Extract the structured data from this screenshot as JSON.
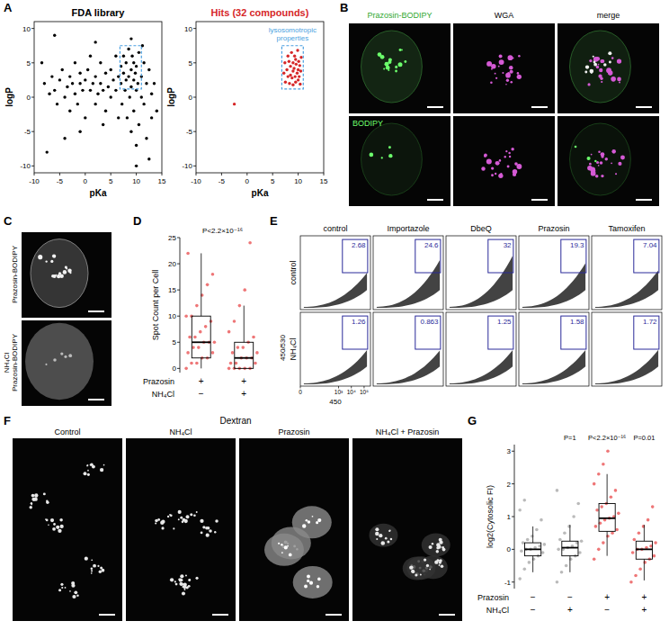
{
  "chart_data": [
    {
      "type": "scatter",
      "title": "FDA library",
      "xlabel": "pKa",
      "ylabel": "logP",
      "color": "#000000",
      "xlim": [
        -10,
        15
      ],
      "ylim": [
        -11,
        11
      ],
      "xticks": [
        -10,
        -5,
        0,
        5,
        10,
        15
      ],
      "yticks": [
        -10,
        -5,
        0,
        5,
        10
      ],
      "x": [
        -8,
        -7,
        -6.5,
        -6,
        -5.5,
        -5,
        -4.5,
        -4,
        -3.5,
        -3,
        -3,
        -2.5,
        -2,
        -2,
        -1.5,
        -1,
        -1,
        -0.5,
        0,
        0,
        0.5,
        1,
        1,
        1.5,
        2,
        2,
        2.5,
        3,
        3,
        3.5,
        4,
        4,
        4.5,
        5,
        5,
        5.5,
        6,
        6,
        6.5,
        7,
        7,
        7.2,
        7.5,
        7.5,
        7.8,
        8,
        8,
        8.2,
        8.5,
        8.5,
        8.7,
        9,
        9,
        9,
        9.2,
        9.5,
        9.5,
        9.5,
        9.8,
        10,
        10,
        10,
        10.3,
        10.5,
        10.5,
        11,
        11,
        11.5,
        11.5,
        12,
        12,
        12.5,
        13,
        13,
        13.5,
        14,
        -7.5,
        -4,
        10,
        12.5,
        -6,
        2,
        9,
        -8.5,
        3.5,
        6.5,
        11.2,
        -1
      ],
      "values": [
        2,
        0.5,
        3,
        1,
        -1,
        2.5,
        4,
        0,
        1.5,
        3,
        -2,
        2,
        0.5,
        5,
        -1,
        2,
        3.5,
        1,
        2.5,
        -3,
        4,
        1,
        6,
        2,
        -1,
        3,
        0.5,
        2,
        5,
        1,
        3.5,
        -2,
        1.5,
        4,
        0,
        2.5,
        1,
        6,
        3,
        2,
        4.5,
        -1,
        3.5,
        6,
        1,
        2.5,
        5,
        -3,
        3,
        7,
        0,
        4,
        1.5,
        -5,
        6,
        2.5,
        5,
        -2,
        3.5,
        1,
        4.5,
        -7,
        2,
        6.5,
        -4,
        3,
        0,
        5,
        -1,
        2,
        -6,
        4,
        0.5,
        -3,
        2,
        -2,
        -8,
        -6,
        -10,
        -9,
        9,
        8,
        8.5,
        5,
        -4,
        -3,
        7.5,
        -5
      ],
      "annotations": [
        {
          "x": [
            6.8,
            11
          ],
          "y": [
            1.2,
            7.5
          ]
        }
      ]
    },
    {
      "type": "scatter",
      "title": "Hits (32 compounds)",
      "xlabel": "pKa",
      "ylabel": "logP",
      "color": "#d62728",
      "xlim": [
        -10,
        15
      ],
      "ylim": [
        -11,
        11
      ],
      "xticks": [
        -10,
        -5,
        0,
        5,
        10,
        15
      ],
      "yticks": [
        -10,
        -5,
        0,
        5,
        10
      ],
      "x": [
        -2.5,
        7.2,
        7.4,
        7.5,
        7.8,
        8,
        8,
        8.2,
        8.3,
        8.5,
        8.5,
        8.7,
        8.8,
        9,
        9,
        9,
        9.2,
        9.3,
        9.4,
        9.5,
        9.5,
        9.6,
        9.8,
        9.9,
        10,
        10,
        10.1,
        10.2,
        10.3,
        10.4,
        10.5,
        10.6
      ],
      "values": [
        -1,
        3.5,
        5,
        2.2,
        4,
        6,
        3,
        5.2,
        2,
        4.5,
        3.2,
        6.5,
        2.8,
        5,
        3.8,
        1.8,
        4.2,
        6,
        3,
        5.5,
        2.2,
        4.8,
        3.5,
        6.8,
        4,
        2.5,
        5.2,
        3,
        4.6,
        1.9,
        3.8,
        5.8
      ],
      "annotations": [
        {
          "x": [
            6.8,
            11
          ],
          "y": [
            1.2,
            7.5
          ],
          "text": [
            "lysosomotropic",
            "properties"
          ]
        }
      ]
    },
    {
      "type": "box",
      "title": "P<2.2×10⁻¹⁶",
      "ylabel": "Spot Count per Cell",
      "ylim": [
        -0.8,
        25
      ],
      "yticks": [
        0,
        5,
        10,
        15,
        20,
        25
      ],
      "colors": [
        "#e31a1c",
        "#e31a1c"
      ],
      "boxes": [
        {
          "min": 0,
          "q1": 2,
          "median": 5,
          "q3": 10,
          "max": 22,
          "points": [
            0,
            1,
            1,
            2,
            2,
            3,
            3,
            4,
            4,
            5,
            5,
            5,
            6,
            6,
            7,
            8,
            9,
            10,
            10,
            12,
            14,
            16,
            18,
            22
          ]
        },
        {
          "min": 0,
          "q1": 0,
          "median": 2,
          "q3": 5,
          "max": 12,
          "points": [
            0,
            0,
            0,
            0,
            0,
            1,
            1,
            1,
            2,
            2,
            2,
            3,
            3,
            4,
            4,
            5,
            6,
            7,
            9,
            12,
            15,
            24
          ]
        }
      ],
      "conditions": [
        {
          "name": "Prazosin",
          "values": [
            "+",
            "+"
          ]
        },
        {
          "name": "NH₄Cl",
          "values": [
            "−",
            "+"
          ]
        }
      ]
    },
    {
      "type": "flow_gates",
      "xlabel": "450",
      "ylabel": "450/530",
      "columns": [
        "control",
        "Importazole",
        "DbeQ",
        "Prazosin",
        "Tamoxifen"
      ],
      "rows": [
        "control",
        "NH₄Cl"
      ],
      "cells": [
        [
          2.68,
          24.6,
          32,
          19.3,
          7.04
        ],
        [
          1.26,
          0.863,
          1.25,
          1.58,
          1.72
        ]
      ],
      "xlim": [
        0,
        5.5
      ],
      "xticks": [
        {
          "value": 0,
          "label": "0"
        },
        {
          "value": 3,
          "label": "10³"
        },
        {
          "value": 4,
          "label": "10⁴"
        },
        {
          "value": 5,
          "label": "10⁵"
        }
      ]
    },
    {
      "type": "box",
      "ylabel": "log2(Cytosolic FI)",
      "ylim": [
        -1.2,
        3.2
      ],
      "yticks": [
        -1,
        0,
        1,
        2,
        3
      ],
      "colors": [
        "#8c8c8c",
        "#8c8c8c",
        "#e31a1c",
        "#e31a1c"
      ],
      "p_labels": [
        null,
        "P=1",
        "P<2.2×10⁻¹⁶",
        "P=0.01"
      ],
      "boxes": [
        {
          "min": -0.7,
          "q1": -0.2,
          "median": 0,
          "q3": 0.2,
          "max": 0.7,
          "points": [
            -0.9,
            -0.6,
            -0.4,
            -0.3,
            -0.2,
            -0.1,
            -0.05,
            0,
            0,
            0.05,
            0.1,
            0.15,
            0.2,
            0.3,
            0.4,
            0.6,
            0.9,
            1.2,
            1.5
          ]
        },
        {
          "min": -0.7,
          "q1": -0.2,
          "median": 0.05,
          "q3": 0.25,
          "max": 0.75,
          "points": [
            -1,
            -0.7,
            -0.5,
            -0.3,
            -0.2,
            -0.1,
            0,
            0,
            0.05,
            0.1,
            0.2,
            0.25,
            0.3,
            0.5,
            0.7,
            1,
            1.4,
            1.8
          ]
        },
        {
          "min": -0.2,
          "q1": 0.55,
          "median": 0.95,
          "q3": 1.4,
          "max": 2.3,
          "points": [
            -0.3,
            0,
            0.2,
            0.4,
            0.5,
            0.6,
            0.7,
            0.8,
            0.9,
            0.95,
            1,
            1.1,
            1.2,
            1.3,
            1.4,
            1.6,
            1.8,
            2,
            2.3,
            2.6,
            3
          ]
        },
        {
          "min": -0.95,
          "q1": -0.3,
          "median": 0,
          "q3": 0.25,
          "max": 0.75,
          "points": [
            -1,
            -0.8,
            -0.6,
            -0.4,
            -0.3,
            -0.2,
            -0.1,
            0,
            0,
            0.05,
            0.1,
            0.2,
            0.3,
            0.5,
            0.7,
            0.9,
            1.3
          ]
        }
      ],
      "conditions": [
        {
          "name": "Prazosin",
          "values": [
            "−",
            "−",
            "+",
            "+"
          ]
        },
        {
          "name": "NH₄Cl",
          "values": [
            "−",
            "+",
            "−",
            "+"
          ]
        }
      ]
    }
  ],
  "figure": {
    "panel_labels": [
      "A",
      "B",
      "C",
      "D",
      "E",
      "F",
      "G"
    ],
    "B": {
      "labels": [
        "Prazosin-BODIPY",
        "WGA",
        "merge",
        "BODIPY"
      ]
    },
    "C": {
      "labels": [
        [
          "Prazosin-BODIPY"
        ],
        [
          "NH₄Cl",
          "Prazosin-BODIPY"
        ]
      ]
    },
    "F": {
      "title": "Dextran",
      "labels": [
        "Control",
        "NH₄Cl",
        "Prazosin",
        "NH₄Cl + Prazosin"
      ]
    }
  }
}
